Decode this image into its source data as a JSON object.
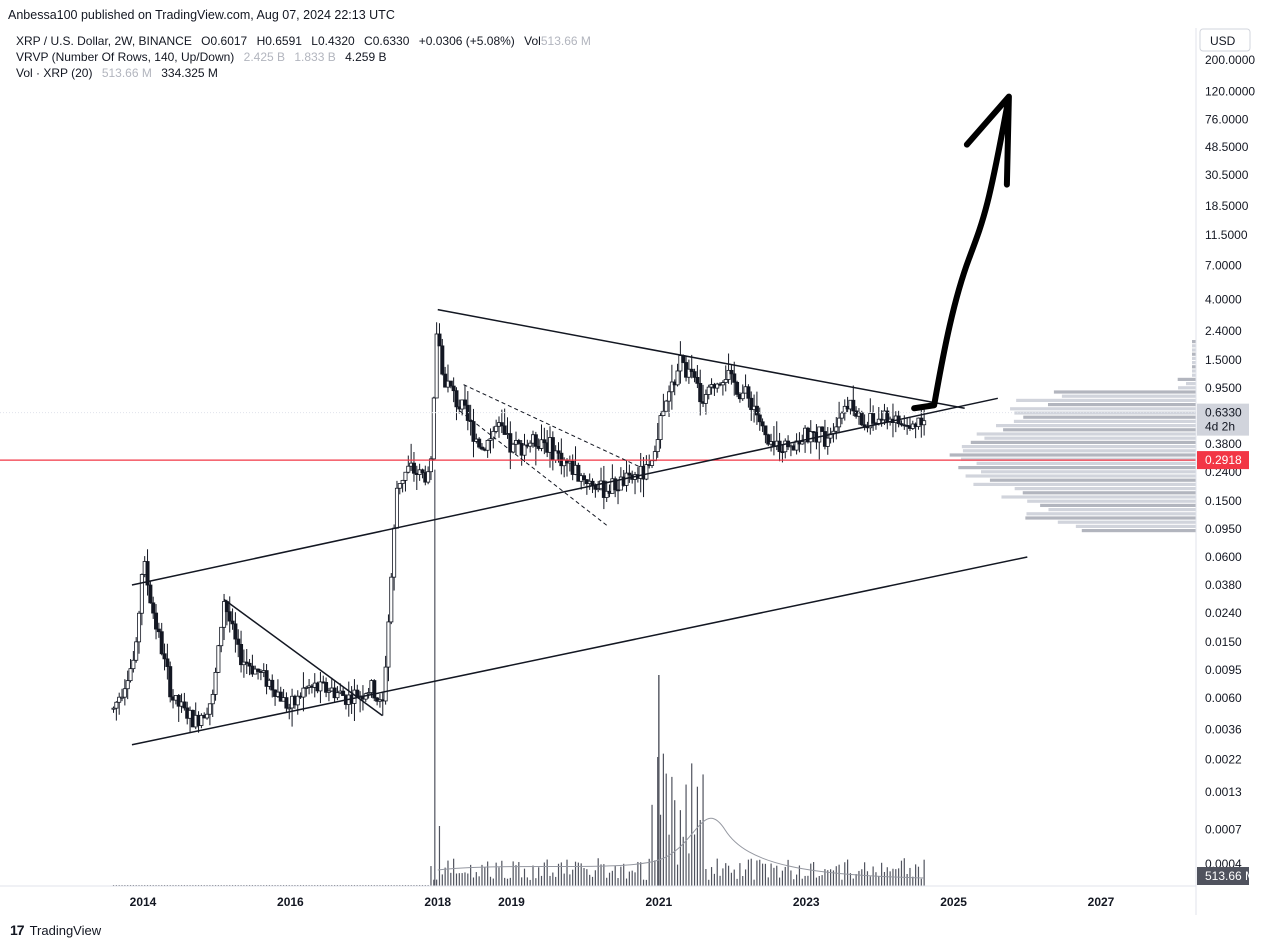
{
  "header": {
    "published_by": "Anbessa100 published on TradingView.com, Aug 07, 2024 22:13 UTC"
  },
  "legend": {
    "symbol": "XRP / U.S. Dollar, 2W, BINANCE",
    "ohlc": {
      "o_label": "O",
      "o": "0.6017",
      "h_label": "H",
      "h": "0.6591",
      "l_label": "L",
      "l": "0.4320",
      "c_label": "C",
      "c": "0.6330",
      "change": "+0.0306 (+5.08%)",
      "vol_label": "Vol",
      "vol": "513.66 M"
    },
    "vrvp": {
      "label": "VRVP (Number Of Rows, 140, Up/Down)",
      "v1": "2.425 B",
      "v2": "1.833 B",
      "v3": "4.259 B"
    },
    "vol_ma": {
      "label": "Vol · XRP (20)",
      "v1": "513.66 M",
      "v2": "334.325 M"
    }
  },
  "currency": "USD",
  "price_tags": {
    "last_price": "0.6330",
    "countdown": "4d 2h",
    "hline_price": "0.2918",
    "volume": "513.66 M"
  },
  "colors": {
    "hline": "#f23645",
    "price_tag_bg": "#d1d4dc",
    "candle": "#131722",
    "volume_profile": "#d1d4dc"
  },
  "footer": {
    "brand": "TradingView"
  },
  "chart_data": {
    "type": "candlestick",
    "symbol": "XRP/USD",
    "interval": "2W",
    "y_scale": "log",
    "y_tick_labels": [
      "200.0000",
      "120.0000",
      "76.0000",
      "48.5000",
      "30.5000",
      "18.5000",
      "11.5000",
      "7.0000",
      "4.0000",
      "2.4000",
      "1.5000",
      "0.9500",
      "0.6330",
      "0.3800",
      "0.2918",
      "0.2400",
      "0.1500",
      "0.0950",
      "0.0600",
      "0.0380",
      "0.0240",
      "0.0150",
      "0.0095",
      "0.0060",
      "0.0036",
      "0.0022",
      "0.0013",
      "0.0007",
      "0.0004"
    ],
    "x_tick_labels": [
      "2014",
      "2016",
      "2018",
      "2019",
      "2021",
      "2023",
      "2025",
      "2027"
    ],
    "price_path": [
      {
        "t": 2013.6,
        "p": 0.005
      },
      {
        "t": 2013.9,
        "p": 0.012
      },
      {
        "t": 2014.0,
        "p": 0.06
      },
      {
        "t": 2014.1,
        "p": 0.03
      },
      {
        "t": 2014.4,
        "p": 0.006
      },
      {
        "t": 2014.7,
        "p": 0.004
      },
      {
        "t": 2014.95,
        "p": 0.006
      },
      {
        "t": 2015.1,
        "p": 0.03
      },
      {
        "t": 2015.3,
        "p": 0.012
      },
      {
        "t": 2015.7,
        "p": 0.008
      },
      {
        "t": 2016.0,
        "p": 0.005
      },
      {
        "t": 2016.2,
        "p": 0.007
      },
      {
        "t": 2016.5,
        "p": 0.007
      },
      {
        "t": 2016.8,
        "p": 0.006
      },
      {
        "t": 2017.1,
        "p": 0.007
      },
      {
        "t": 2017.25,
        "p": 0.005
      },
      {
        "t": 2017.35,
        "p": 0.03
      },
      {
        "t": 2017.45,
        "p": 0.2
      },
      {
        "t": 2017.6,
        "p": 0.25
      },
      {
        "t": 2017.9,
        "p": 0.22
      },
      {
        "t": 2018.0,
        "p": 3.0
      },
      {
        "t": 2018.05,
        "p": 1.2
      },
      {
        "t": 2018.3,
        "p": 0.7
      },
      {
        "t": 2018.6,
        "p": 0.35
      },
      {
        "t": 2018.8,
        "p": 0.5
      },
      {
        "t": 2019.0,
        "p": 0.35
      },
      {
        "t": 2019.4,
        "p": 0.42
      },
      {
        "t": 2019.8,
        "p": 0.26
      },
      {
        "t": 2020.2,
        "p": 0.18
      },
      {
        "t": 2020.5,
        "p": 0.2
      },
      {
        "t": 2020.9,
        "p": 0.25
      },
      {
        "t": 2021.0,
        "p": 0.5
      },
      {
        "t": 2021.3,
        "p": 1.5
      },
      {
        "t": 2021.6,
        "p": 0.8
      },
      {
        "t": 2021.9,
        "p": 1.2
      },
      {
        "t": 2022.3,
        "p": 0.7
      },
      {
        "t": 2022.5,
        "p": 0.35
      },
      {
        "t": 2022.9,
        "p": 0.4
      },
      {
        "t": 2023.3,
        "p": 0.45
      },
      {
        "t": 2023.55,
        "p": 0.75
      },
      {
        "t": 2023.8,
        "p": 0.5
      },
      {
        "t": 2024.1,
        "p": 0.6
      },
      {
        "t": 2024.4,
        "p": 0.48
      },
      {
        "t": 2024.6,
        "p": 0.633
      }
    ],
    "drawn_trendlines": [
      {
        "name": "channel-upper",
        "from": {
          "t": 2013.85,
          "p": 0.038
        },
        "to": {
          "t": 2025.6,
          "p": 0.8
        }
      },
      {
        "name": "channel-lower",
        "from": {
          "t": 2013.85,
          "p": 0.0028
        },
        "to": {
          "t": 2026.0,
          "p": 0.06
        }
      },
      {
        "name": "triangle-top",
        "from": {
          "t": 2018.0,
          "p": 3.4
        },
        "to": {
          "t": 2025.15,
          "p": 0.68
        }
      },
      {
        "name": "2015-downtrend",
        "from": {
          "t": 2015.1,
          "p": 0.03
        },
        "to": {
          "t": 2017.25,
          "p": 0.0045
        }
      },
      {
        "name": "2018-dashed-upper",
        "from": {
          "t": 2018.35,
          "p": 1.0
        },
        "to": {
          "t": 2020.75,
          "p": 0.26
        }
      },
      {
        "name": "2018-dashed-lower",
        "from": {
          "t": 2018.3,
          "p": 0.65
        },
        "to": {
          "t": 2020.3,
          "p": 0.1
        }
      }
    ],
    "horizontal_line": {
      "price": 0.2918
    },
    "hand_drawn_arrow": {
      "from": {
        "t": 2024.6,
        "p": 0.68
      },
      "to": {
        "t": 2025.75,
        "p": 110
      }
    }
  }
}
